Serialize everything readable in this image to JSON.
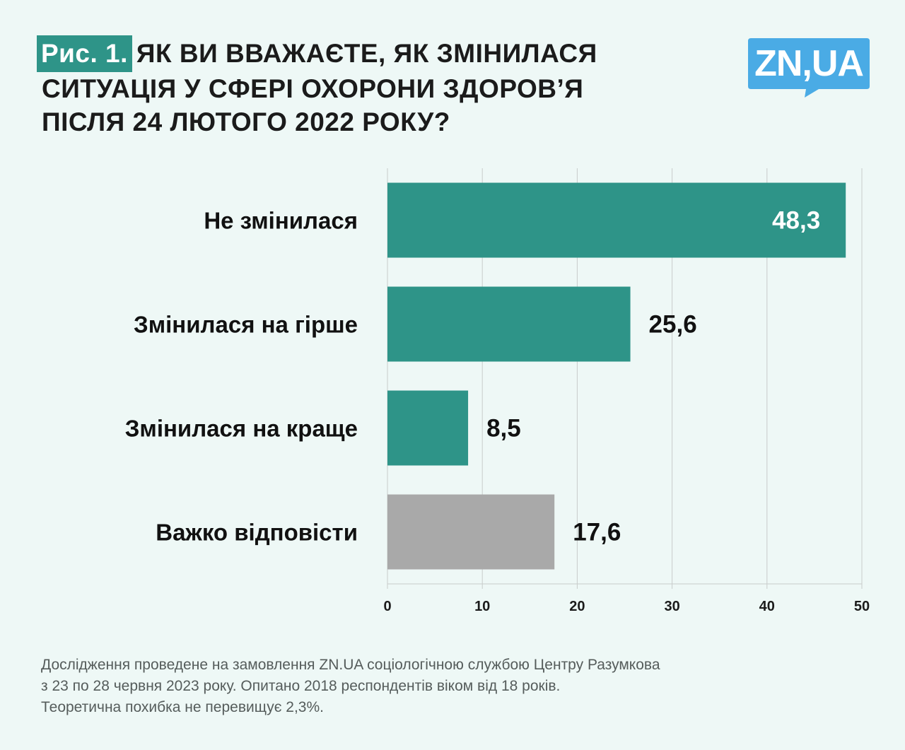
{
  "title": {
    "fig_label": "Рис. 1.",
    "line1": "ЯК ВИ ВВАЖАЄТЕ, ЯК ЗМІНИЛАСЯ",
    "line2": "СИТУАЦІЯ У СФЕРІ ОХОРОНИ ЗДОРОВ’Я",
    "line3": "ПІСЛЯ 24 ЛЮТОГО 2022 РОКУ?"
  },
  "logo": {
    "text": "ZN,UA",
    "color": "#4aabe5"
  },
  "chart_data": {
    "type": "bar",
    "orientation": "horizontal",
    "categories": [
      "Не змінилася",
      "Змінилася на гірше",
      "Змінилася на краще",
      "Важко відповісти"
    ],
    "values": [
      48.3,
      25.6,
      8.5,
      17.6
    ],
    "value_labels": [
      "48,3",
      "25,6",
      "8,5",
      "17,6"
    ],
    "bar_colors": [
      "#2e9488",
      "#2e9488",
      "#2e9488",
      "#a9a9a9"
    ],
    "xlim": [
      0,
      50
    ],
    "x_ticks": [
      0,
      10,
      20,
      30,
      40,
      50
    ],
    "grid": true,
    "xlabel": "",
    "ylabel": ""
  },
  "footnote": {
    "line1": "Дослідження проведене на замовлення ZN.UA соціологічною службою Центру Разумкова",
    "line2": "з 23 по 28 червня 2023 року. Опитано 2018 респондентів віком від 18 років.",
    "line3": "Теоретична похибка не перевищує 2,3%."
  }
}
